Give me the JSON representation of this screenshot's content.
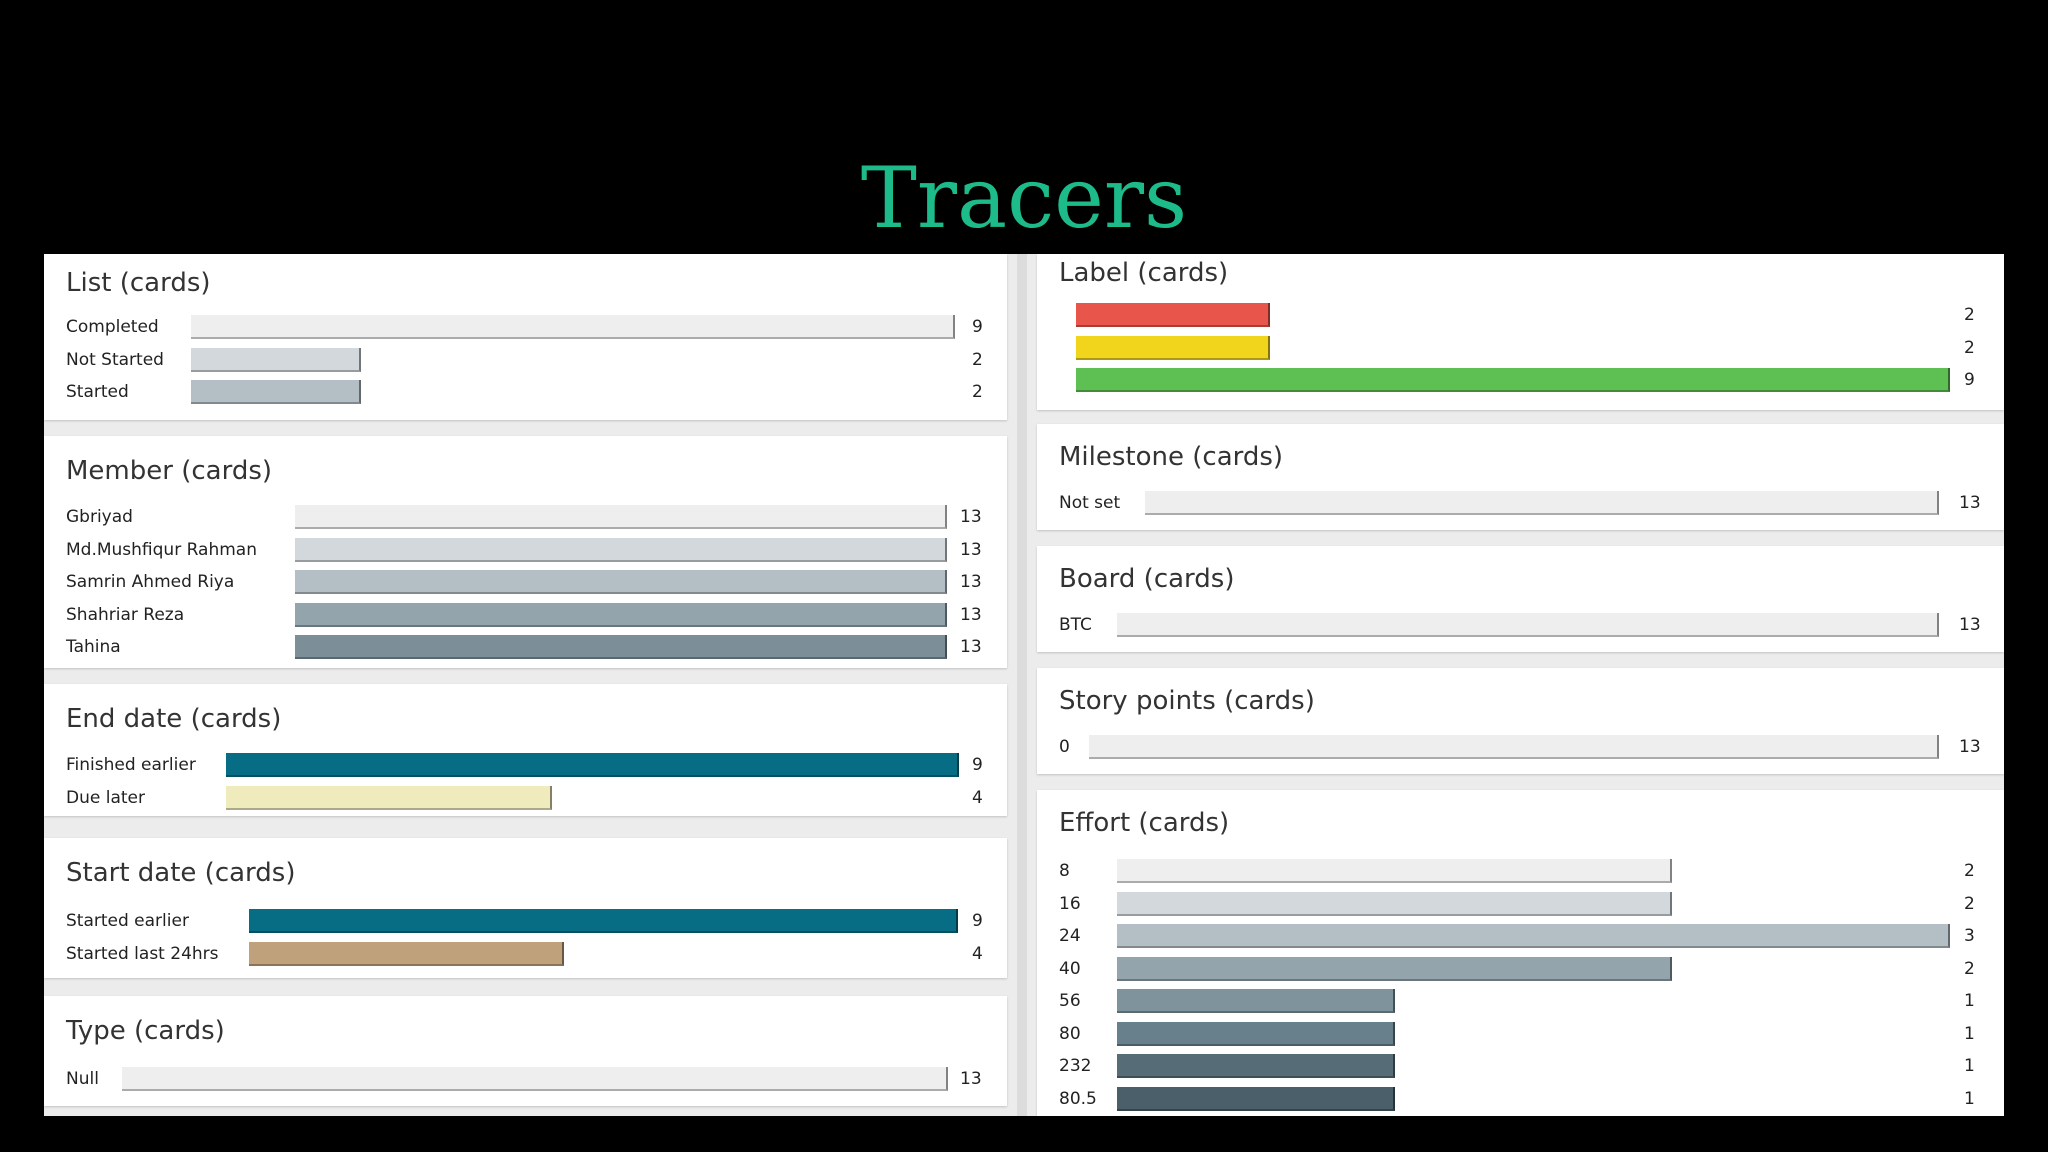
{
  "title": "Tracers",
  "chart_data": [
    {
      "type": "bar",
      "title": "List (cards)",
      "categories": [
        "Completed",
        "Not Started",
        "Started"
      ],
      "values": [
        9,
        2,
        2
      ],
      "colors": [
        "#eeeeee",
        "#d3d8dc",
        "#b4bfc5"
      ],
      "xlim": [
        0,
        9
      ]
    },
    {
      "type": "bar",
      "title": "Member (cards)",
      "categories": [
        "Gbriyad",
        "Md.Mushfiqur Rahman",
        "Samrin Ahmed Riya",
        "Shahriar Reza",
        "Tahina"
      ],
      "values": [
        13,
        13,
        13,
        13,
        13
      ],
      "colors": [
        "#eeeeee",
        "#d3d8dc",
        "#b4bfc5",
        "#93a4ad",
        "#7c8f99"
      ],
      "xlim": [
        0,
        13
      ]
    },
    {
      "type": "bar",
      "title": "End date (cards)",
      "categories": [
        "Finished earlier",
        "Due later"
      ],
      "values": [
        9,
        4
      ],
      "colors": [
        "#076d84",
        "#f0ebbd"
      ],
      "xlim": [
        0,
        9
      ]
    },
    {
      "type": "bar",
      "title": "Start date (cards)",
      "categories": [
        "Started earlier",
        "Started last 24hrs"
      ],
      "values": [
        9,
        4
      ],
      "colors": [
        "#076d84",
        "#bfa27c"
      ],
      "xlim": [
        0,
        9
      ]
    },
    {
      "type": "bar",
      "title": "Type (cards)",
      "categories": [
        "Null"
      ],
      "values": [
        13
      ],
      "colors": [
        "#eeeeee"
      ],
      "xlim": [
        0,
        13
      ]
    },
    {
      "type": "bar",
      "title": "Label (cards)",
      "categories": [
        "",
        "",
        ""
      ],
      "values": [
        2,
        2,
        9
      ],
      "colors": [
        "#e8554a",
        "#f1d51c",
        "#5ebf53"
      ],
      "xlim": [
        0,
        9
      ]
    },
    {
      "type": "bar",
      "title": "Milestone (cards)",
      "categories": [
        "Not set"
      ],
      "values": [
        13
      ],
      "colors": [
        "#eeeeee"
      ],
      "xlim": [
        0,
        13
      ]
    },
    {
      "type": "bar",
      "title": "Board (cards)",
      "categories": [
        "BTC"
      ],
      "values": [
        13
      ],
      "colors": [
        "#eeeeee"
      ],
      "xlim": [
        0,
        13
      ]
    },
    {
      "type": "bar",
      "title": "Story points (cards)",
      "categories": [
        "0"
      ],
      "values": [
        13
      ],
      "colors": [
        "#eeeeee"
      ],
      "xlim": [
        0,
        13
      ]
    },
    {
      "type": "bar",
      "title": "Effort (cards)",
      "categories": [
        "8",
        "16",
        "24",
        "40",
        "56",
        "80",
        "232",
        "80.5"
      ],
      "values": [
        2,
        2,
        3,
        2,
        1,
        1,
        1,
        1
      ],
      "colors": [
        "#eeeeee",
        "#d3d8dc",
        "#b4bfc5",
        "#93a4ad",
        "#7f939d",
        "#67808c",
        "#566d78",
        "#4a5f69"
      ],
      "xlim": [
        0,
        3
      ]
    }
  ]
}
